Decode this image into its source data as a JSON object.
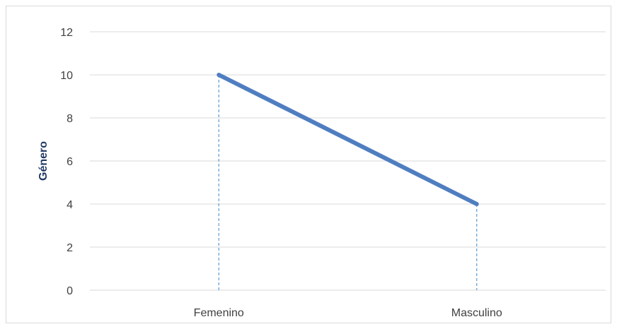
{
  "chart_data": {
    "type": "line",
    "title": "",
    "xlabel": "",
    "ylabel": "Género",
    "categories": [
      "Femenino",
      "Masculino"
    ],
    "series": [
      {
        "values": [
          10,
          4
        ]
      }
    ],
    "ylim": [
      0,
      12
    ],
    "yticks": [
      0,
      2,
      4,
      6,
      8,
      10,
      12
    ],
    "grid": true,
    "drop_lines": true,
    "legend": "none",
    "colors": {
      "line": "#4f7ec0",
      "grid": "#d9d9d9",
      "drop_line": "#5b9bd5",
      "tick_text": "#404040",
      "axis_title": "#1f3864"
    }
  }
}
